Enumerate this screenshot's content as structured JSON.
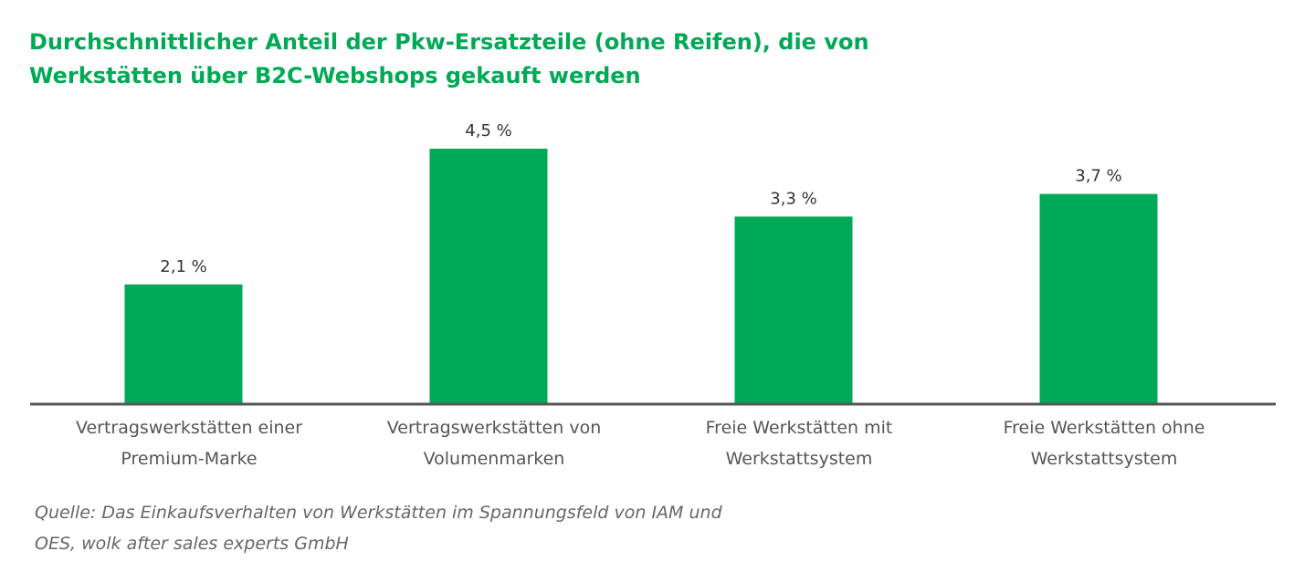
{
  "title_lines": [
    "Durchschnittlicher Anteil der Pkw-Ersatzteile (ohne Reifen), die von",
    "Werkstätten über B2C-Webshops gekauft werden"
  ],
  "source_lines": [
    "Quelle: Das Einkaufsverhalten von Werkstätten im Spannungsfeld von IAM und",
    "OES, wolk after sales experts GmbH"
  ],
  "colors": {
    "bar": "#00a955",
    "axis": "#555555",
    "title": "#00a955"
  },
  "chart_data": {
    "type": "bar",
    "title": "",
    "xlabel": "",
    "ylabel": "",
    "unit": "%",
    "categories": [
      [
        "Vertragswerkstätten einer",
        "Premium-Marke"
      ],
      [
        "Vertragswerkstätten von",
        "Volumenmarken"
      ],
      [
        "Freie Werkstätten mit",
        "Werkstattsystem"
      ],
      [
        "Freie Werkstätten ohne",
        "Werkstattsystem"
      ]
    ],
    "values": [
      2.1,
      4.5,
      3.3,
      3.7
    ],
    "value_labels": [
      "2,1 %",
      "4,5 %",
      "3,3 %",
      "3,7 %"
    ],
    "ylim": [
      0,
      5
    ],
    "grid": false,
    "legend": "none"
  }
}
